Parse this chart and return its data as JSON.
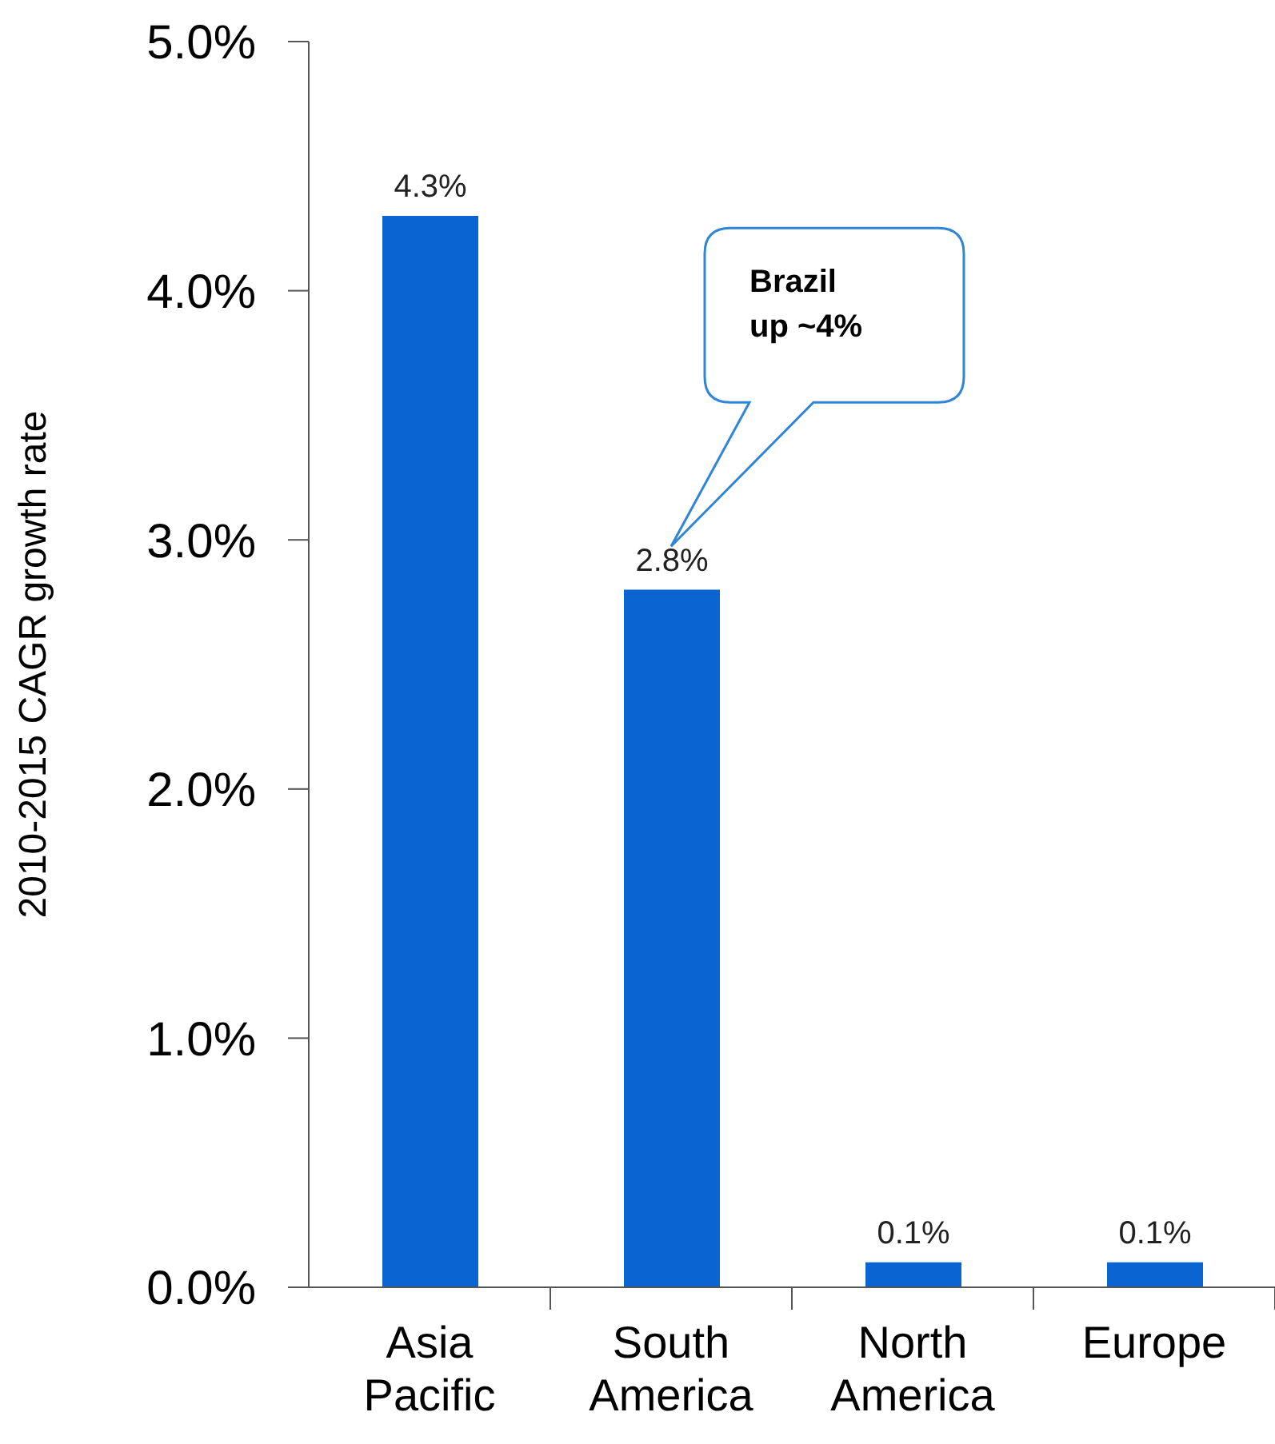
{
  "chart_data": {
    "type": "bar",
    "ylabel": "2010-2015 CAGR growth rate",
    "categories": [
      "Asia Pacific",
      "South America",
      "North America",
      "Europe"
    ],
    "values": [
      4.3,
      2.8,
      0.1,
      0.1
    ],
    "color": "#0a64d2",
    "value_labels": [
      "4.3%",
      "2.8%",
      "0.1%",
      "0.1%"
    ],
    "ylim": [
      0,
      5
    ],
    "yticks": [
      {
        "value": 0,
        "label": "0.0%"
      },
      {
        "value": 1,
        "label": "1.0%"
      },
      {
        "value": 2,
        "label": "2.0%"
      },
      {
        "value": 3,
        "label": "3.0%"
      },
      {
        "value": 4,
        "label": "4.0%"
      },
      {
        "value": 5,
        "label": "5.0%"
      }
    ],
    "annotations": [
      "Brazil\nup ~4%"
    ]
  }
}
